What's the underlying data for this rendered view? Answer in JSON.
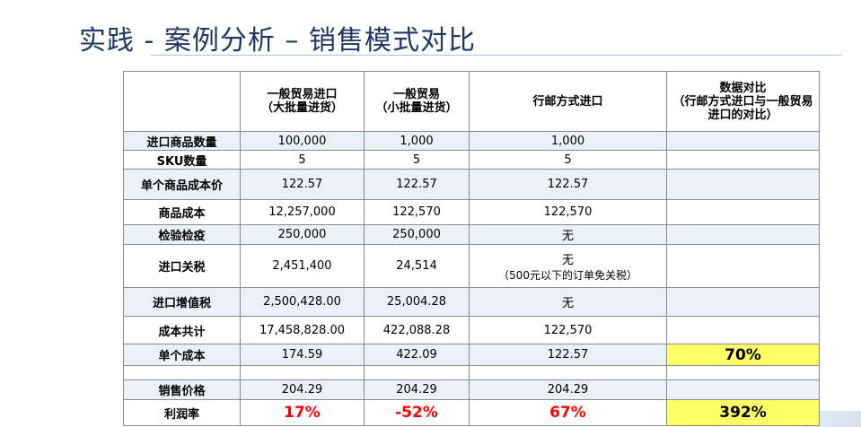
{
  "slide": {
    "title": "实践 -  案例分析 – 销售模式对比"
  },
  "table": {
    "headers": [
      {
        "line1": "一般贸易进口",
        "line2": "（大批量进货）"
      },
      {
        "line1": "一般贸易",
        "line2": "（小批量进货）"
      },
      {
        "line1": "行邮方式进口",
        "line2": ""
      },
      {
        "line1": "数据对比",
        "line2": "（行邮方式进口与一般贸易进口的对比）"
      }
    ],
    "rows": [
      {
        "label": "进口商品数量",
        "c1": "100,000",
        "c2": "1,000",
        "c3": "1,000",
        "c3_note": "",
        "c4": ""
      },
      {
        "label": "SKU数量",
        "c1": "5",
        "c2": "5",
        "c3": "5",
        "c3_note": "",
        "c4": ""
      },
      {
        "label": "单个商品成本价",
        "c1": "122.57",
        "c2": "122.57",
        "c3": "122.57",
        "c3_note": "",
        "c4": ""
      },
      {
        "label": "商品成本",
        "c1": "12,257,000",
        "c2": "122,570",
        "c3": "122,570",
        "c3_note": "",
        "c4": ""
      },
      {
        "label": "检验检疫",
        "c1": "250,000",
        "c2": "250,000",
        "c3": "无",
        "c3_note": "",
        "c4": ""
      },
      {
        "label": "进口关税",
        "c1": "2,451,400",
        "c2": "24,514",
        "c3": "无",
        "c3_note": "（500元以下的订单免关税）",
        "c4": ""
      },
      {
        "label": "进口增值税",
        "c1": "2,500,428.00",
        "c2": "25,004.28",
        "c3": "无",
        "c3_note": "",
        "c4": ""
      },
      {
        "label": "成本共计",
        "c1": "17,458,828.00",
        "c2": "422,088.28",
        "c3": "122,570",
        "c3_note": "",
        "c4": ""
      },
      {
        "label": "单个成本",
        "c1": "174.59",
        "c2": "422.09",
        "c3": "122.57",
        "c3_note": "",
        "c4": "70%"
      },
      {
        "label": "",
        "c1": "",
        "c2": "",
        "c3": "",
        "c3_note": "",
        "c4": ""
      },
      {
        "label": "销售价格",
        "c1": "204.29",
        "c2": "204.29",
        "c3": "204.29",
        "c3_note": "",
        "c4": ""
      },
      {
        "label": "利润率",
        "c1": "17%",
        "c2": "-52%",
        "c3": "67%",
        "c3_note": "",
        "c4": "392%"
      }
    ]
  },
  "colors": {
    "title": "#1f3864",
    "highlight": "#ffff66",
    "negative_red": "#ff0000",
    "alt_row": "#eaf1f8"
  }
}
